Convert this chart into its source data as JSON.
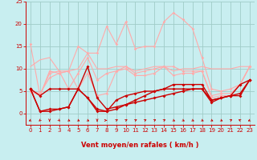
{
  "xlabel": "Vent moyen/en rafales ( km/h )",
  "xlim": [
    -0.5,
    23.5
  ],
  "ylim": [
    -2.5,
    25
  ],
  "yticks": [
    0,
    5,
    10,
    15,
    20,
    25
  ],
  "xticks": [
    0,
    1,
    2,
    3,
    4,
    5,
    6,
    7,
    8,
    9,
    10,
    11,
    12,
    13,
    14,
    15,
    16,
    17,
    18,
    19,
    20,
    21,
    22,
    23
  ],
  "bg_color": "#c8eef0",
  "grid_color": "#a0ccc8",
  "series": [
    {
      "y": [
        15.5,
        4.0,
        9.5,
        9.0,
        9.5,
        15.0,
        13.5,
        13.5,
        19.5,
        15.5,
        20.5,
        14.5,
        15.0,
        15.0,
        20.5,
        22.5,
        21.0,
        19.0,
        12.5,
        5.5,
        5.0,
        5.5,
        6.5,
        10.5
      ],
      "color": "#ffaaaa",
      "lw": 0.8,
      "marker": "D",
      "ms": 1.8
    },
    {
      "y": [
        10.5,
        12.0,
        12.5,
        9.5,
        9.5,
        10.0,
        13.5,
        10.0,
        10.0,
        10.5,
        10.5,
        9.5,
        10.0,
        10.5,
        10.5,
        9.5,
        10.0,
        10.0,
        10.5,
        10.0,
        10.0,
        10.0,
        10.5,
        10.5
      ],
      "color": "#ffaaaa",
      "lw": 0.8,
      "marker": null,
      "ms": 0
    },
    {
      "y": [
        5.0,
        4.5,
        8.0,
        9.0,
        9.5,
        5.5,
        9.0,
        4.0,
        4.5,
        9.5,
        10.5,
        9.0,
        9.5,
        10.0,
        10.5,
        10.5,
        9.5,
        9.5,
        9.5,
        4.0,
        4.5,
        4.5,
        6.5,
        10.5
      ],
      "color": "#ffaaaa",
      "lw": 0.8,
      "marker": "D",
      "ms": 1.8
    },
    {
      "y": [
        5.0,
        4.0,
        9.0,
        9.5,
        5.5,
        9.0,
        12.5,
        7.5,
        9.0,
        9.5,
        10.0,
        8.5,
        8.5,
        9.0,
        10.5,
        8.5,
        9.0,
        9.0,
        9.5,
        3.5,
        4.0,
        4.0,
        6.5,
        10.5
      ],
      "color": "#ffaaaa",
      "lw": 0.8,
      "marker": "D",
      "ms": 1.8
    },
    {
      "y": [
        5.5,
        4.0,
        5.5,
        5.5,
        5.5,
        5.5,
        10.5,
        3.5,
        1.0,
        1.5,
        2.0,
        2.5,
        3.0,
        3.5,
        4.0,
        4.5,
        5.0,
        5.5,
        5.5,
        2.5,
        3.5,
        4.0,
        4.0,
        7.5
      ],
      "color": "#cc0000",
      "lw": 1.0,
      "marker": "D",
      "ms": 2.0
    },
    {
      "y": [
        5.5,
        0.5,
        1.0,
        1.0,
        1.5,
        5.5,
        3.5,
        1.0,
        0.5,
        3.0,
        4.0,
        4.5,
        5.0,
        5.0,
        5.5,
        5.5,
        5.5,
        5.5,
        5.5,
        3.0,
        3.5,
        4.0,
        4.5,
        7.5
      ],
      "color": "#cc0000",
      "lw": 1.0,
      "marker": "D",
      "ms": 2.0
    },
    {
      "y": [
        5.5,
        0.5,
        0.5,
        1.0,
        1.5,
        5.5,
        3.5,
        0.5,
        0.5,
        1.0,
        2.0,
        3.0,
        4.0,
        5.0,
        5.5,
        6.5,
        6.5,
        6.5,
        6.5,
        3.0,
        3.5,
        4.0,
        6.5,
        7.5
      ],
      "color": "#cc0000",
      "lw": 1.0,
      "marker": "D",
      "ms": 2.0
    }
  ],
  "wind_dir_angles": [
    225,
    210,
    180,
    150,
    135,
    135,
    135,
    180,
    90,
    45,
    45,
    45,
    45,
    45,
    45,
    135,
    135,
    135,
    135,
    135,
    135,
    45,
    315,
    225
  ]
}
